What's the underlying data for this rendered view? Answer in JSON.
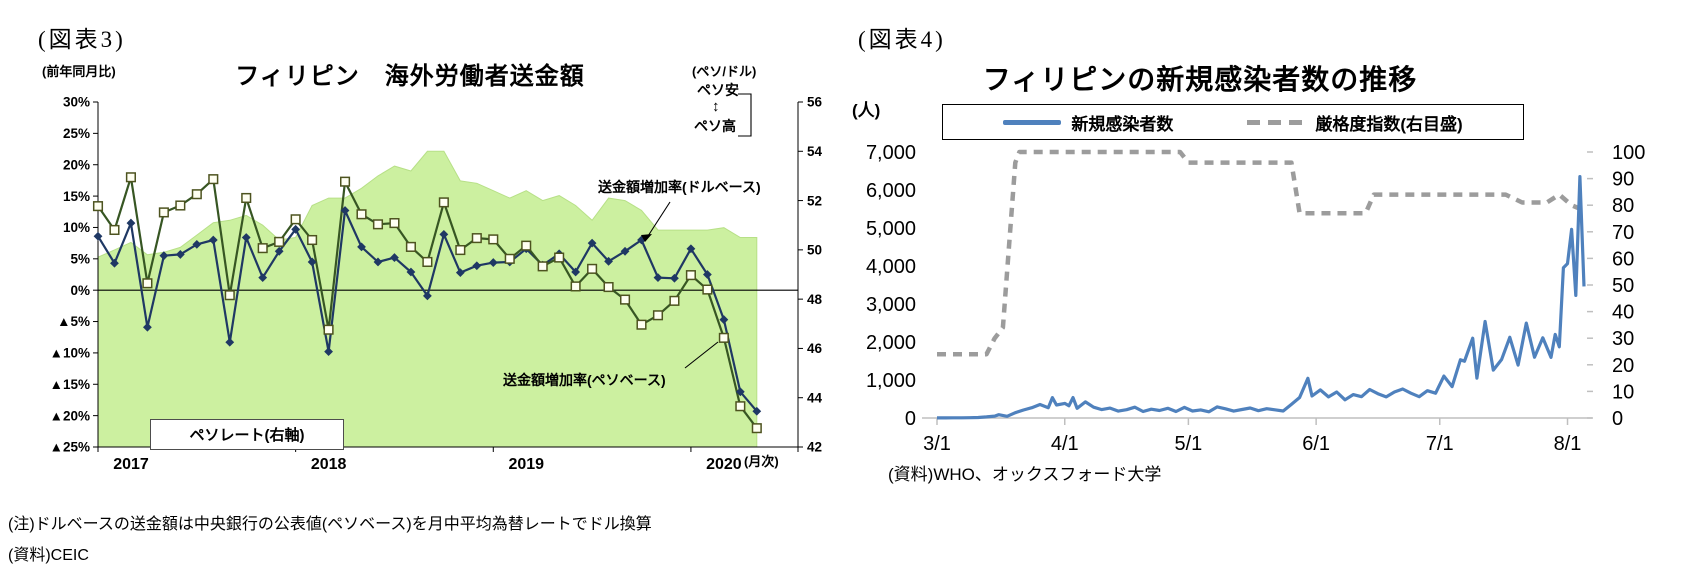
{
  "fig3": {
    "tag": "(図表3)",
    "title": "フィリピン　海外労働者送金額",
    "left_axis_unit": "(前年同月比)",
    "right_axis_unit": "(ペソ/ドル)",
    "peso_weak": "ペソ安",
    "updown_arrow": "↕",
    "peso_strong": "ペソ高",
    "x_unit": "(月次)",
    "note1": "(注)ドルベースの送金額は中央銀行の公表値(ペソベース)を月中平均為替レートでドル換算",
    "note2": "(資料)CEIC",
    "annotations": {
      "dollar": "送金額増加率(ドルベース)",
      "peso": "送金額増加率(ペソベース)",
      "rate": "ペソレート(右軸)"
    },
    "chart_data": {
      "type": "combo",
      "x_months": [
        "2017-01",
        "2017-02",
        "2017-03",
        "2017-04",
        "2017-05",
        "2017-06",
        "2017-07",
        "2017-08",
        "2017-09",
        "2017-10",
        "2017-11",
        "2017-12",
        "2018-01",
        "2018-02",
        "2018-03",
        "2018-04",
        "2018-05",
        "2018-06",
        "2018-07",
        "2018-08",
        "2018-09",
        "2018-10",
        "2018-11",
        "2018-12",
        "2019-01",
        "2019-02",
        "2019-03",
        "2019-04",
        "2019-05",
        "2019-06",
        "2019-07",
        "2019-08",
        "2019-09",
        "2019-10",
        "2019-11",
        "2019-12",
        "2020-01",
        "2020-02",
        "2020-03",
        "2020-04",
        "2020-05"
      ],
      "axes": {
        "left": {
          "min": -25,
          "max": 30,
          "ticks": [
            "30%",
            "25%",
            "20%",
            "15%",
            "10%",
            "5%",
            "0%",
            "▲5%",
            "▲10%",
            "▲15%",
            "▲20%",
            "▲25%"
          ]
        },
        "right": {
          "min": 42,
          "max": 56,
          "ticks": [
            "56",
            "54",
            "52",
            "50",
            "48",
            "46",
            "44",
            "42"
          ]
        },
        "x": {
          "tick_labels": [
            "2017",
            "2018",
            "2019",
            "2020"
          ]
        }
      },
      "series": [
        {
          "name": "ペソレート(右軸)",
          "type": "area",
          "axis": "right",
          "color": "#CCF0A0",
          "values": [
            49.7,
            50.0,
            50.3,
            49.8,
            49.9,
            50.1,
            50.6,
            51.1,
            51.2,
            51.4,
            51.0,
            50.4,
            50.5,
            51.8,
            52.1,
            52.1,
            52.5,
            53.0,
            53.4,
            53.2,
            54.0,
            54.0,
            52.8,
            52.7,
            52.4,
            52.1,
            52.4,
            52.0,
            52.2,
            51.8,
            51.2,
            52.1,
            52.0,
            51.6,
            50.8,
            50.8,
            50.8,
            50.8,
            50.9,
            50.5,
            50.5
          ]
        },
        {
          "name": "送金額増加率(ドルベース)",
          "type": "line",
          "axis": "left",
          "color": "#1F3864",
          "marker": "diamond",
          "values": [
            8.6,
            4.3,
            10.7,
            -5.9,
            5.5,
            5.7,
            7.3,
            8.0,
            -8.3,
            8.4,
            2.0,
            6.2,
            9.7,
            4.5,
            -9.8,
            12.7,
            6.9,
            4.5,
            5.2,
            2.9,
            -0.9,
            8.9,
            2.8,
            3.9,
            4.4,
            4.5,
            6.6,
            4.0,
            5.8,
            2.9,
            7.5,
            4.6,
            6.2,
            8.0,
            2.0,
            1.9,
            6.6,
            2.5,
            -4.7,
            -16.2,
            -19.3
          ]
        },
        {
          "name": "送金額増加率(ペソベース)",
          "type": "line",
          "axis": "left",
          "color": "#375623",
          "marker": "square",
          "values": [
            13.4,
            9.6,
            18.0,
            1.1,
            12.4,
            13.5,
            15.3,
            17.7,
            -0.8,
            14.7,
            6.7,
            7.7,
            11.3,
            8.0,
            -6.3,
            17.3,
            12.1,
            10.5,
            10.7,
            6.9,
            4.5,
            14.0,
            6.4,
            8.3,
            8.1,
            5.0,
            7.1,
            3.8,
            5.2,
            0.6,
            3.4,
            0.5,
            -1.5,
            -5.5,
            -4.0,
            -1.7,
            2.4,
            0.1,
            -7.6,
            -18.5,
            -22.0
          ]
        }
      ]
    }
  },
  "fig4": {
    "tag": "(図表4)",
    "title": "フィリピンの新規感染者数の推移",
    "left_axis_unit": "(人)",
    "source": "(資料)WHO、オックスフォード大学",
    "legend": {
      "items": [
        {
          "label": "新規感染者数",
          "style": "solid",
          "color": "#4F81BD"
        },
        {
          "label": "厳格度指数(右目盛)",
          "style": "dashed",
          "color": "#9C9C9C"
        }
      ]
    },
    "chart_data": {
      "type": "line",
      "axes": {
        "left": {
          "min": 0,
          "max": 7000,
          "ticks": [
            "7,000",
            "6,000",
            "5,000",
            "4,000",
            "3,000",
            "2,000",
            "1,000",
            "0"
          ]
        },
        "right": {
          "min": 0,
          "max": 100,
          "ticks": [
            "100",
            "90",
            "80",
            "70",
            "60",
            "50",
            "40",
            "30",
            "20",
            "10",
            "0"
          ]
        },
        "x": {
          "tick_labels": [
            "3/1",
            "4/1",
            "5/1",
            "6/1",
            "7/1",
            "8/1"
          ],
          "tick_days": [
            0,
            31,
            61,
            92,
            122,
            153
          ],
          "start_date": "2020-03-01"
        }
      },
      "series": [
        {
          "name": "新規感染者数",
          "axis": "left",
          "color": "#4F81BD",
          "style": "solid",
          "points": [
            [
              0,
              3
            ],
            [
              2,
              2
            ],
            [
              4,
              4
            ],
            [
              6,
              5
            ],
            [
              8,
              8
            ],
            [
              10,
              14
            ],
            [
              12,
              29
            ],
            [
              14,
              49
            ],
            [
              15,
              87
            ],
            [
              17,
              45
            ],
            [
              19,
              140
            ],
            [
              21,
              210
            ],
            [
              23,
              272
            ],
            [
              25,
              355
            ],
            [
              27,
              272
            ],
            [
              28,
              538
            ],
            [
              29,
              343
            ],
            [
              31,
              385
            ],
            [
              32,
              322
            ],
            [
              33,
              538
            ],
            [
              34,
              255
            ],
            [
              36,
              424
            ],
            [
              38,
              284
            ],
            [
              40,
              220
            ],
            [
              42,
              261
            ],
            [
              44,
              181
            ],
            [
              46,
              218
            ],
            [
              48,
              285
            ],
            [
              50,
              172
            ],
            [
              52,
              232
            ],
            [
              54,
              198
            ],
            [
              56,
              254
            ],
            [
              58,
              171
            ],
            [
              60,
              279
            ],
            [
              62,
              184
            ],
            [
              64,
              213
            ],
            [
              66,
              163
            ],
            [
              68,
              292
            ],
            [
              70,
              243
            ],
            [
              72,
              181
            ],
            [
              74,
              224
            ],
            [
              76,
              263
            ],
            [
              78,
              192
            ],
            [
              80,
              244
            ],
            [
              82,
              215
            ],
            [
              84,
              184
            ],
            [
              86,
              358
            ],
            [
              88,
              539
            ],
            [
              90,
              1046
            ],
            [
              91,
              580
            ],
            [
              93,
              740
            ],
            [
              95,
              555
            ],
            [
              97,
              684
            ],
            [
              99,
              479
            ],
            [
              101,
              617
            ],
            [
              103,
              561
            ],
            [
              105,
              751
            ],
            [
              107,
              639
            ],
            [
              109,
              555
            ],
            [
              111,
              683
            ],
            [
              113,
              764
            ],
            [
              115,
              653
            ],
            [
              117,
              561
            ],
            [
              119,
              719
            ],
            [
              121,
              653
            ],
            [
              123,
              1103
            ],
            [
              125,
              826
            ],
            [
              127,
              1531
            ],
            [
              128,
              1494
            ],
            [
              130,
              2099
            ],
            [
              131,
              1050
            ],
            [
              133,
              2539
            ],
            [
              135,
              1261
            ],
            [
              137,
              1540
            ],
            [
              139,
              2124
            ],
            [
              141,
              1392
            ],
            [
              143,
              2498
            ],
            [
              145,
              1600
            ],
            [
              147,
              2110
            ],
            [
              149,
              1594
            ],
            [
              150,
              2200
            ],
            [
              151,
              1874
            ],
            [
              152,
              3954
            ],
            [
              153,
              4063
            ],
            [
              154,
              4963
            ],
            [
              155,
              3226
            ],
            [
              156,
              6352
            ],
            [
              157,
              3462
            ]
          ]
        },
        {
          "name": "厳格度指数(右目盛)",
          "axis": "right",
          "color": "#9C9C9C",
          "style": "dashed",
          "points": [
            [
              0,
              24
            ],
            [
              12,
              24
            ],
            [
              14,
              30
            ],
            [
              16,
              34
            ],
            [
              17,
              55
            ],
            [
              19,
              96
            ],
            [
              20,
              100
            ],
            [
              59,
              100
            ],
            [
              61,
              96
            ],
            [
              86,
              96
            ],
            [
              88,
              77
            ],
            [
              104,
              77
            ],
            [
              106,
              84
            ],
            [
              138,
              84
            ],
            [
              142,
              81
            ],
            [
              148,
              81
            ],
            [
              151,
              84
            ],
            [
              154,
              80
            ],
            [
              157,
              78
            ]
          ]
        }
      ]
    }
  }
}
